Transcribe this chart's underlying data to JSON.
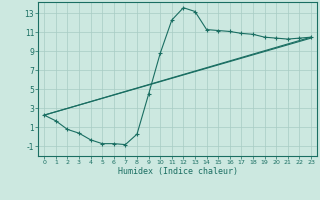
{
  "background_color": "#cce8e0",
  "grid_color": "#a8ccc4",
  "line_color": "#1a6e62",
  "xlabel": "Humidex (Indice chaleur)",
  "xlim": [
    -0.5,
    23.5
  ],
  "ylim": [
    -2.0,
    14.2
  ],
  "yticks": [
    -1,
    1,
    3,
    5,
    7,
    9,
    11,
    13
  ],
  "xticks": [
    0,
    1,
    2,
    3,
    4,
    5,
    6,
    7,
    8,
    9,
    10,
    11,
    12,
    13,
    14,
    15,
    16,
    17,
    18,
    19,
    20,
    21,
    22,
    23
  ],
  "curve_x": [
    0,
    1,
    2,
    3,
    4,
    5,
    6,
    7,
    8,
    9,
    10,
    11,
    12,
    13,
    14,
    15,
    16,
    17,
    18,
    19,
    20,
    21,
    22,
    23
  ],
  "curve_y": [
    2.3,
    1.7,
    0.8,
    0.4,
    -0.3,
    -0.7,
    -0.7,
    -0.8,
    0.3,
    4.5,
    8.8,
    12.3,
    13.6,
    13.2,
    11.3,
    11.2,
    11.1,
    10.9,
    10.8,
    10.5,
    10.4,
    10.3,
    10.4,
    10.5
  ],
  "line1_x": [
    0,
    23
  ],
  "line1_y": [
    2.3,
    10.5
  ],
  "line2_x": [
    0,
    23
  ],
  "line2_y": [
    2.3,
    10.4
  ]
}
